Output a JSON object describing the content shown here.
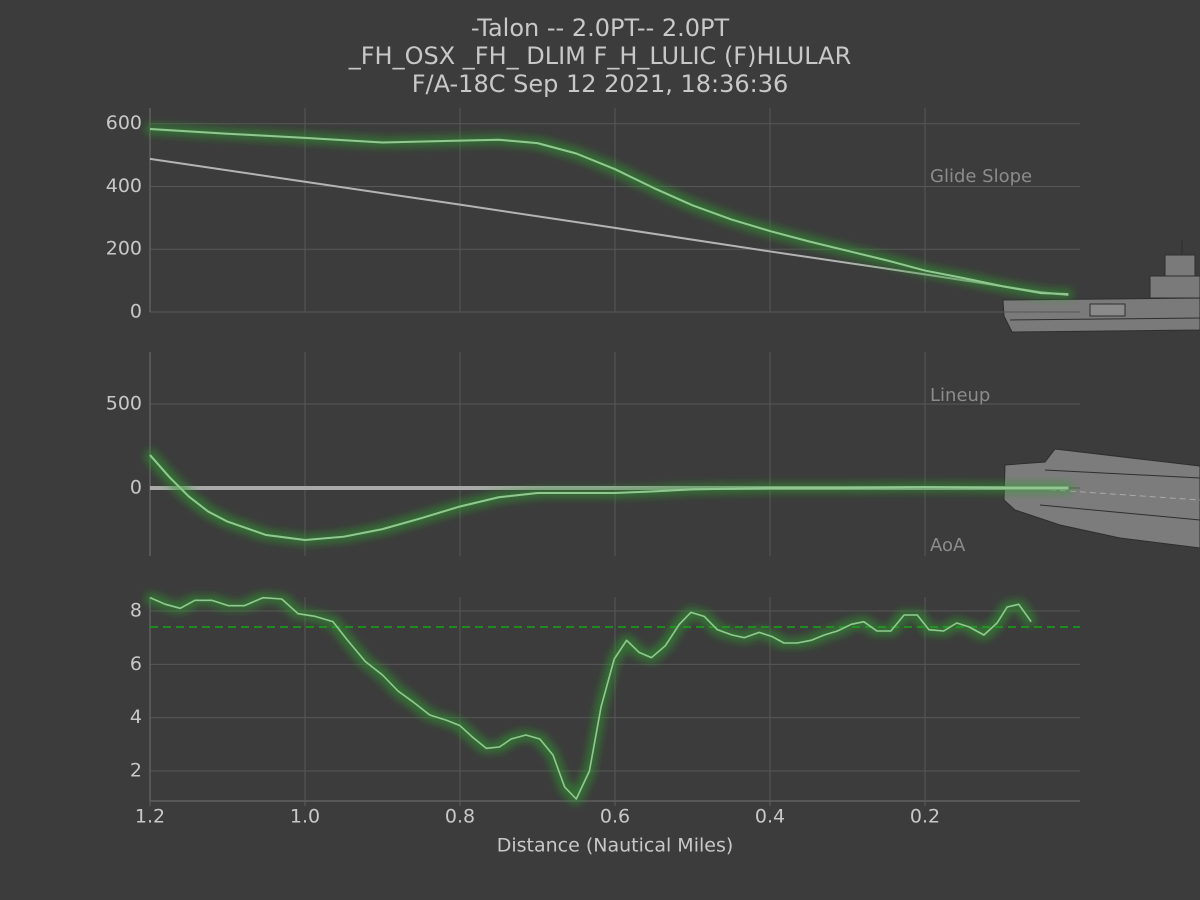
{
  "title": [
    "-Talon -- 2.0PT-- 2.0PT",
    "_FH_OSX _FH_ DLIM  F_H_LULIC (F)HLULAR",
    "F/A-18C Sep 12 2021, 18:36:36"
  ],
  "chart_data": [
    {
      "type": "line",
      "annotation": "Glide Slope",
      "xlim": [
        1.2,
        0
      ],
      "ylim": [
        0,
        650
      ],
      "yticks": [
        0,
        200,
        400,
        600
      ],
      "grid": true,
      "series": [
        {
          "color": "#b4b4b4",
          "glow": false,
          "width": 2,
          "x": [
            1.2,
            1.0,
            0.8,
            0.6,
            0.4,
            0.2,
            0.05,
            0.015
          ],
          "values": [
            488,
            415,
            342,
            268,
            193,
            120,
            63,
            54
          ]
        },
        {
          "color": "#8fc98f",
          "glow": true,
          "width": 2,
          "x": [
            1.2,
            1.1,
            1.0,
            0.9,
            0.8,
            0.75,
            0.7,
            0.65,
            0.6,
            0.55,
            0.5,
            0.45,
            0.4,
            0.35,
            0.3,
            0.25,
            0.2,
            0.15,
            0.1,
            0.05,
            0.015
          ],
          "values": [
            583,
            568,
            555,
            540,
            546,
            549,
            538,
            505,
            455,
            395,
            340,
            295,
            258,
            225,
            195,
            165,
            132,
            108,
            82,
            60,
            57
          ]
        }
      ]
    },
    {
      "type": "line",
      "annotation": "Lineup",
      "xlim": [
        1.2,
        0
      ],
      "ylim": [
        -405,
        810
      ],
      "yticks": [
        0,
        500
      ],
      "grid": true,
      "series": [
        {
          "color": "#aaaaaa",
          "glow": false,
          "width": 4,
          "x": [
            1.2,
            0.015
          ],
          "values": [
            0,
            0
          ]
        },
        {
          "color": "#8fc98f",
          "glow": true,
          "width": 2,
          "x": [
            1.2,
            1.175,
            1.15,
            1.125,
            1.1,
            1.05,
            1.0,
            0.95,
            0.9,
            0.85,
            0.8,
            0.75,
            0.7,
            0.6,
            0.55,
            0.5,
            0.4,
            0.3,
            0.2,
            0.1,
            0.015
          ],
          "values": [
            196,
            65,
            -50,
            -140,
            -200,
            -280,
            -310,
            -290,
            -245,
            -180,
            -110,
            -55,
            -30,
            -30,
            -20,
            -8,
            0,
            0,
            5,
            0,
            0
          ]
        }
      ]
    },
    {
      "type": "line",
      "annotation": "AoA",
      "xlim": [
        1.2,
        0
      ],
      "ylim": [
        0.875,
        8.525
      ],
      "yticks": [
        2,
        4,
        6,
        8
      ],
      "grid": true,
      "xlabel": "Distance (Nautical Miles)",
      "xticks": [
        1.2,
        {
          "value": 1,
          "label": "1.0"
        },
        0.8,
        0.6,
        0.4,
        0.2
      ],
      "hlines": [
        {
          "value": 7.4,
          "color": "#1f8a1f",
          "style": "dashed"
        }
      ],
      "series": [
        {
          "color": "#8fc98f",
          "glow": true,
          "width": 1.6,
          "x": [
            1.2,
            1.181,
            1.161,
            1.142,
            1.12,
            1.099,
            1.078,
            1.054,
            1.03,
            1.009,
            0.987,
            0.964,
            0.945,
            0.922,
            0.9,
            0.88,
            0.861,
            0.839,
            0.817,
            0.8,
            0.785,
            0.766,
            0.749,
            0.734,
            0.715,
            0.697,
            0.68,
            0.665,
            0.65,
            0.633,
            0.618,
            0.601,
            0.585,
            0.569,
            0.553,
            0.535,
            0.517,
            0.502,
            0.485,
            0.468,
            0.449,
            0.433,
            0.414,
            0.398,
            0.382,
            0.365,
            0.347,
            0.33,
            0.313,
            0.295,
            0.279,
            0.262,
            0.244,
            0.227,
            0.21,
            0.195,
            0.176,
            0.159,
            0.143,
            0.124,
            0.107,
            0.094,
            0.079,
            0.063
          ],
          "values": [
            8.5,
            8.26,
            8.1,
            8.4,
            8.4,
            8.2,
            8.2,
            8.5,
            8.45,
            7.9,
            7.8,
            7.6,
            6.9,
            6.1,
            5.6,
            5.0,
            4.6,
            4.1,
            3.9,
            3.7,
            3.3,
            2.85,
            2.9,
            3.2,
            3.35,
            3.2,
            2.6,
            1.4,
            0.95,
            2.0,
            4.4,
            6.2,
            6.9,
            6.45,
            6.25,
            6.7,
            7.5,
            7.95,
            7.8,
            7.3,
            7.1,
            7.0,
            7.2,
            7.05,
            6.8,
            6.8,
            6.9,
            7.1,
            7.25,
            7.5,
            7.6,
            7.25,
            7.25,
            7.85,
            7.85,
            7.3,
            7.25,
            7.55,
            7.4,
            7.1,
            7.55,
            8.15,
            8.25,
            7.6
          ]
        }
      ]
    }
  ]
}
